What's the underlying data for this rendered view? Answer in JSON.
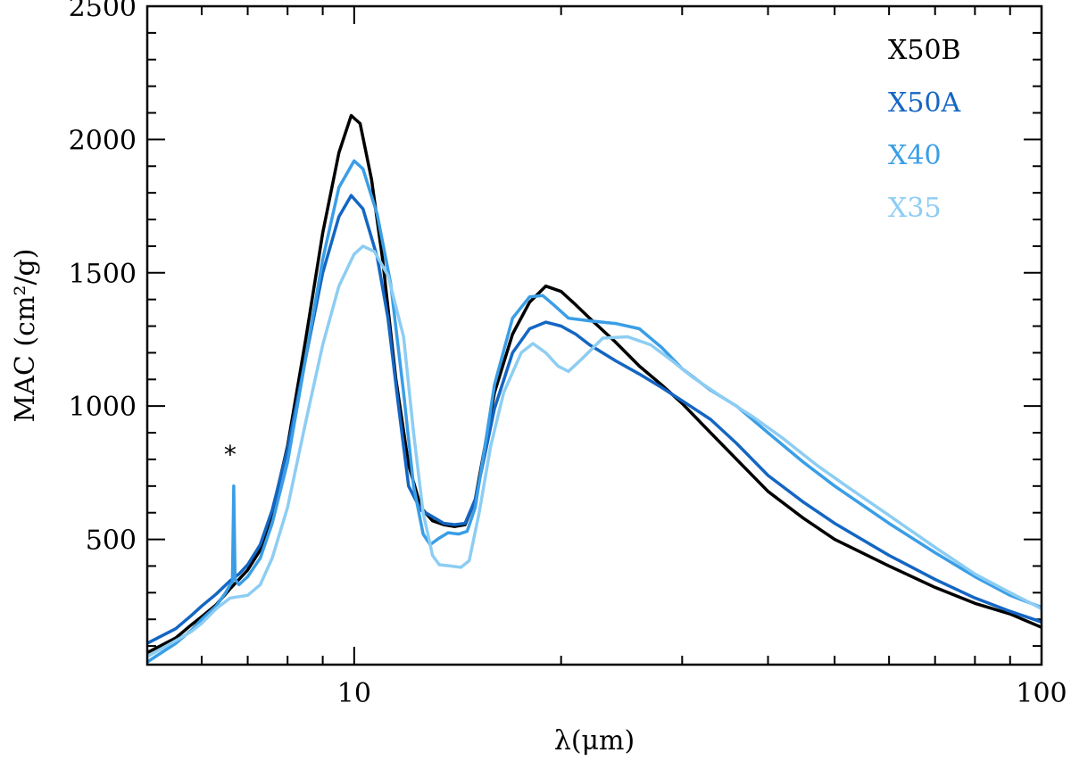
{
  "chart_data": {
    "type": "line",
    "title": "",
    "xlabel": "λ(μm)",
    "ylabel": "MAC (cm²/g)",
    "xscale": "log",
    "xlim": [
      5,
      100
    ],
    "ylim": [
      30,
      2500
    ],
    "x_ticks": [
      {
        "value": 10,
        "label": "10"
      },
      {
        "value": 100,
        "label": "100"
      }
    ],
    "y_ticks": [
      {
        "value": 500,
        "label": "500"
      },
      {
        "value": 1000,
        "label": "1000"
      },
      {
        "value": 1500,
        "label": "1500"
      },
      {
        "value": 2000,
        "label": "2000"
      },
      {
        "value": 2500,
        "label": "2500"
      }
    ],
    "legend_position": "top-right",
    "annotations": [
      {
        "text": "*",
        "x": 6.6,
        "y": 820
      }
    ],
    "series": [
      {
        "name": "X50B",
        "color": "#000000",
        "points": [
          [
            5,
            75
          ],
          [
            5.5,
            130
          ],
          [
            5.8,
            180
          ],
          [
            6.0,
            210
          ],
          [
            6.3,
            255
          ],
          [
            6.6,
            315
          ],
          [
            6.8,
            350
          ],
          [
            7.0,
            385
          ],
          [
            7.3,
            460
          ],
          [
            7.6,
            600
          ],
          [
            8.0,
            850
          ],
          [
            8.5,
            1250
          ],
          [
            9.0,
            1650
          ],
          [
            9.5,
            1950
          ],
          [
            9.9,
            2090
          ],
          [
            10.2,
            2060
          ],
          [
            10.6,
            1850
          ],
          [
            11.0,
            1550
          ],
          [
            11.5,
            1100
          ],
          [
            12.0,
            780
          ],
          [
            12.5,
            620
          ],
          [
            13.0,
            570
          ],
          [
            13.5,
            555
          ],
          [
            14.0,
            548
          ],
          [
            14.5,
            555
          ],
          [
            15.0,
            650
          ],
          [
            15.5,
            850
          ],
          [
            16.0,
            1050
          ],
          [
            17.0,
            1270
          ],
          [
            18.0,
            1390
          ],
          [
            19.0,
            1450
          ],
          [
            20.0,
            1430
          ],
          [
            21.0,
            1380
          ],
          [
            22.0,
            1330
          ],
          [
            24.0,
            1240
          ],
          [
            26.0,
            1150
          ],
          [
            28.0,
            1080
          ],
          [
            30.0,
            1010
          ],
          [
            33.0,
            900
          ],
          [
            36.0,
            800
          ],
          [
            40.0,
            680
          ],
          [
            45.0,
            580
          ],
          [
            50.0,
            500
          ],
          [
            60.0,
            400
          ],
          [
            70.0,
            320
          ],
          [
            80.0,
            260
          ],
          [
            90.0,
            220
          ],
          [
            100.0,
            170
          ]
        ]
      },
      {
        "name": "X50A",
        "color": "#1466c3",
        "points": [
          [
            5,
            110
          ],
          [
            5.5,
            165
          ],
          [
            5.8,
            215
          ],
          [
            6.0,
            250
          ],
          [
            6.3,
            295
          ],
          [
            6.6,
            345
          ],
          [
            6.8,
            370
          ],
          [
            7.0,
            405
          ],
          [
            7.3,
            480
          ],
          [
            7.6,
            610
          ],
          [
            8.0,
            840
          ],
          [
            8.5,
            1180
          ],
          [
            9.0,
            1500
          ],
          [
            9.5,
            1710
          ],
          [
            9.9,
            1790
          ],
          [
            10.3,
            1740
          ],
          [
            10.8,
            1560
          ],
          [
            11.2,
            1330
          ],
          [
            11.6,
            1000
          ],
          [
            12.0,
            700
          ],
          [
            12.5,
            610
          ],
          [
            13.0,
            585
          ],
          [
            13.5,
            560
          ],
          [
            14.0,
            555
          ],
          [
            14.5,
            560
          ],
          [
            15.0,
            650
          ],
          [
            15.5,
            820
          ],
          [
            16.0,
            990
          ],
          [
            17.0,
            1200
          ],
          [
            18.0,
            1290
          ],
          [
            19.0,
            1315
          ],
          [
            20.0,
            1300
          ],
          [
            21.0,
            1270
          ],
          [
            22.0,
            1230
          ],
          [
            24.0,
            1170
          ],
          [
            26.0,
            1120
          ],
          [
            28.0,
            1070
          ],
          [
            30.0,
            1020
          ],
          [
            33.0,
            950
          ],
          [
            36.0,
            860
          ],
          [
            40.0,
            740
          ],
          [
            45.0,
            640
          ],
          [
            50.0,
            560
          ],
          [
            60.0,
            440
          ],
          [
            70.0,
            350
          ],
          [
            80.0,
            280
          ],
          [
            90.0,
            230
          ],
          [
            100.0,
            190
          ]
        ]
      },
      {
        "name": "X40",
        "color": "#3a9ee6",
        "points": [
          [
            5,
            40
          ],
          [
            5.5,
            110
          ],
          [
            5.8,
            160
          ],
          [
            6.0,
            200
          ],
          [
            6.3,
            250
          ],
          [
            6.5,
            300
          ],
          [
            6.6,
            330
          ],
          [
            6.65,
            340
          ],
          [
            6.68,
            700
          ],
          [
            6.71,
            350
          ],
          [
            6.8,
            330
          ],
          [
            7.0,
            360
          ],
          [
            7.3,
            430
          ],
          [
            7.6,
            560
          ],
          [
            8.0,
            790
          ],
          [
            8.5,
            1180
          ],
          [
            9.0,
            1550
          ],
          [
            9.5,
            1820
          ],
          [
            10.0,
            1920
          ],
          [
            10.3,
            1890
          ],
          [
            10.8,
            1720
          ],
          [
            11.3,
            1460
          ],
          [
            11.8,
            1050
          ],
          [
            12.2,
            700
          ],
          [
            12.6,
            520
          ],
          [
            12.9,
            480
          ],
          [
            13.3,
            505
          ],
          [
            13.7,
            525
          ],
          [
            14.2,
            520
          ],
          [
            14.6,
            530
          ],
          [
            15.0,
            620
          ],
          [
            15.5,
            850
          ],
          [
            16.0,
            1080
          ],
          [
            17.0,
            1330
          ],
          [
            18.0,
            1410
          ],
          [
            18.8,
            1415
          ],
          [
            19.5,
            1380
          ],
          [
            20.5,
            1330
          ],
          [
            22.0,
            1320
          ],
          [
            24.0,
            1310
          ],
          [
            26.0,
            1290
          ],
          [
            28.0,
            1220
          ],
          [
            30.0,
            1140
          ],
          [
            33.0,
            1060
          ],
          [
            36.0,
            1000
          ],
          [
            40.0,
            900
          ],
          [
            45.0,
            790
          ],
          [
            50.0,
            700
          ],
          [
            60.0,
            560
          ],
          [
            70.0,
            450
          ],
          [
            80.0,
            360
          ],
          [
            90.0,
            290
          ],
          [
            100.0,
            245
          ]
        ]
      },
      {
        "name": "X35",
        "color": "#8dcdf3",
        "points": [
          [
            5,
            60
          ],
          [
            5.5,
            120
          ],
          [
            5.8,
            155
          ],
          [
            6.0,
            185
          ],
          [
            6.3,
            240
          ],
          [
            6.6,
            280
          ],
          [
            7.0,
            290
          ],
          [
            7.3,
            330
          ],
          [
            7.6,
            430
          ],
          [
            8.0,
            620
          ],
          [
            8.5,
            940
          ],
          [
            9.0,
            1230
          ],
          [
            9.5,
            1450
          ],
          [
            10.0,
            1570
          ],
          [
            10.3,
            1600
          ],
          [
            10.7,
            1580
          ],
          [
            11.2,
            1490
          ],
          [
            11.8,
            1260
          ],
          [
            12.2,
            900
          ],
          [
            12.6,
            600
          ],
          [
            13.0,
            440
          ],
          [
            13.3,
            405
          ],
          [
            13.8,
            400
          ],
          [
            14.3,
            395
          ],
          [
            14.7,
            420
          ],
          [
            15.2,
            600
          ],
          [
            15.8,
            850
          ],
          [
            16.5,
            1050
          ],
          [
            17.5,
            1200
          ],
          [
            18.2,
            1235
          ],
          [
            19.0,
            1200
          ],
          [
            19.8,
            1150
          ],
          [
            20.5,
            1130
          ],
          [
            21.5,
            1180
          ],
          [
            23.0,
            1255
          ],
          [
            25.0,
            1260
          ],
          [
            27.0,
            1230
          ],
          [
            29.0,
            1170
          ],
          [
            31.0,
            1110
          ],
          [
            34.0,
            1040
          ],
          [
            38.0,
            960
          ],
          [
            42.0,
            880
          ],
          [
            47.0,
            780
          ],
          [
            52.0,
            700
          ],
          [
            60.0,
            590
          ],
          [
            70.0,
            470
          ],
          [
            80.0,
            370
          ],
          [
            90.0,
            300
          ],
          [
            100.0,
            240
          ]
        ]
      }
    ]
  }
}
